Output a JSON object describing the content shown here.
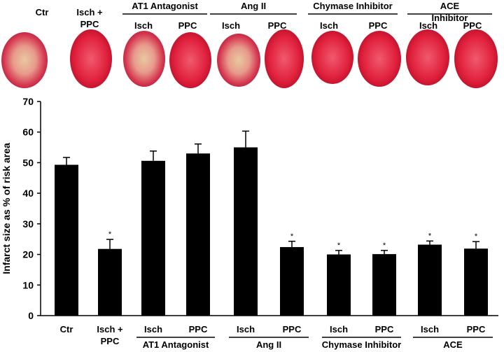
{
  "image_panel": {
    "labels": [
      "Ctr",
      "Isch + PPC",
      "Isch",
      "PPC",
      "Isch",
      "PPC",
      "Isch",
      "PPC",
      "Isch",
      "PPC"
    ],
    "groups": [
      "AT1 Antagonist",
      "Ang II",
      "Chymase Inhibitor",
      "ACE Inhibitor"
    ]
  },
  "chart_data": {
    "type": "bar",
    "y_label": "Infarct size as % of risk area",
    "categories": [
      "Ctr",
      "Isch + PPC",
      "Isch",
      "PPC",
      "Isch",
      "PPC",
      "Isch",
      "PPC",
      "Isch",
      "PPC"
    ],
    "groups": [
      "AT1 Antagonist",
      "Ang II",
      "Chymase Inhibitor",
      "ACE Inhibitor"
    ],
    "values": [
      49.3,
      21.8,
      50.6,
      53,
      55,
      22.4,
      20,
      20.1,
      23.2,
      21.9
    ],
    "errors": [
      2.4,
      3.1,
      3.2,
      3.1,
      5.3,
      1.9,
      1.3,
      1.2,
      1.2,
      2.3
    ],
    "significance": [
      null,
      "*",
      null,
      null,
      null,
      "*",
      "*",
      "*",
      "*",
      "*"
    ],
    "color": "#000000",
    "ylim": [
      0,
      70
    ],
    "yticks": [
      0,
      10,
      20,
      30,
      40,
      50,
      60,
      70
    ],
    "grid": false
  }
}
